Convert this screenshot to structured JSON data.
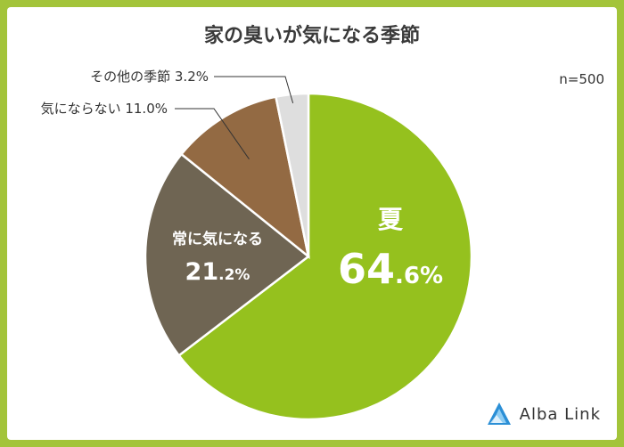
{
  "title": "家の臭いが気になる季節",
  "sample": "n=500",
  "brand": {
    "name": "Alba Link",
    "logo_icon": "triangle-logo-icon"
  },
  "colors": {
    "frame": "#a3c43a",
    "summer": "#95c11e",
    "always": "#6f6553",
    "never": "#936a43",
    "other": "#dedede"
  },
  "chart_data": {
    "type": "pie",
    "title": "家の臭いが気になる季節",
    "slices": [
      {
        "label": "夏",
        "value": 64.6,
        "value_text": "64.6%",
        "color": "#95c11e",
        "label_placement": "inside"
      },
      {
        "label": "常に気になる",
        "value": 21.2,
        "value_text": "21.2%",
        "color": "#6f6553",
        "label_placement": "inside"
      },
      {
        "label": "気にならない",
        "value": 11.0,
        "value_text": "11.0%",
        "color": "#936a43",
        "label_placement": "callout"
      },
      {
        "label": "その他の季節",
        "value": 3.2,
        "value_text": "3.2%",
        "color": "#dedede",
        "label_placement": "callout"
      }
    ],
    "start": "12 o'clock",
    "direction": "clockwise"
  }
}
